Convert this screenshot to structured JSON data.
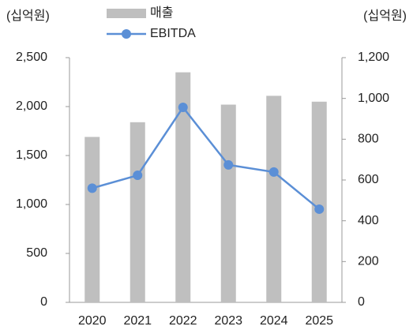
{
  "chart_data": {
    "type": "bar-line",
    "y_label": "(십억원)",
    "y2_label": "(십억원)",
    "categories": [
      "2020",
      "2021",
      "2022",
      "2023",
      "2024",
      "2025"
    ],
    "series": [
      {
        "name": "매출",
        "type": "bar",
        "color": "#bfbfbf",
        "values": [
          1690,
          1840,
          2350,
          2020,
          2110,
          2050
        ]
      },
      {
        "name": "EBITDA",
        "type": "line",
        "axis": "y2",
        "color": "#5b8fd6",
        "values": [
          560,
          623,
          956,
          674,
          639,
          457
        ]
      }
    ],
    "ylim": [
      0,
      2500
    ],
    "yticks": [
      0,
      500,
      {
        "value": 1000,
        "label": "1,000"
      },
      {
        "value": 1500,
        "label": "1,500"
      },
      {
        "value": 2000,
        "label": "2,000"
      },
      {
        "value": 2500,
        "label": "2,500"
      }
    ],
    "y2lim": [
      0,
      1200
    ],
    "y2ticks": [
      0,
      200,
      400,
      600,
      800,
      {
        "value": 1000,
        "label": "1,000"
      },
      {
        "value": 1200,
        "label": "1,200"
      }
    ],
    "legend": "top"
  }
}
